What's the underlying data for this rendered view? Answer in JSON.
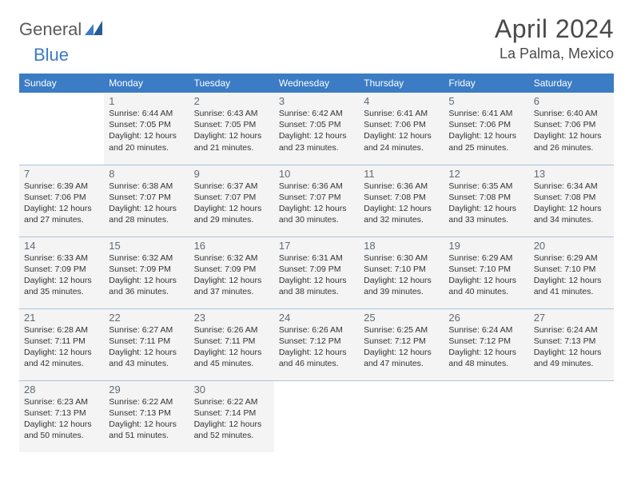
{
  "brand": {
    "part1": "General",
    "part2": "Blue",
    "logo_color": "#3b7cc4",
    "text_color": "#5a5a5a"
  },
  "title": "April 2024",
  "location": "La Palma, Mexico",
  "colors": {
    "header_bg": "#3b7cc4",
    "header_text": "#ffffff",
    "cell_bg": "#f4f4f4",
    "cell_border": "#a9c4de",
    "body_text": "#333333",
    "daynum_text": "#5e6a75"
  },
  "weekday_headers": [
    "Sunday",
    "Monday",
    "Tuesday",
    "Wednesday",
    "Thursday",
    "Friday",
    "Saturday"
  ],
  "grid": [
    [
      null,
      {
        "day": "1",
        "sunrise": "Sunrise: 6:44 AM",
        "sunset": "Sunset: 7:05 PM",
        "day1": "Daylight: 12 hours",
        "day2": "and 20 minutes."
      },
      {
        "day": "2",
        "sunrise": "Sunrise: 6:43 AM",
        "sunset": "Sunset: 7:05 PM",
        "day1": "Daylight: 12 hours",
        "day2": "and 21 minutes."
      },
      {
        "day": "3",
        "sunrise": "Sunrise: 6:42 AM",
        "sunset": "Sunset: 7:05 PM",
        "day1": "Daylight: 12 hours",
        "day2": "and 23 minutes."
      },
      {
        "day": "4",
        "sunrise": "Sunrise: 6:41 AM",
        "sunset": "Sunset: 7:06 PM",
        "day1": "Daylight: 12 hours",
        "day2": "and 24 minutes."
      },
      {
        "day": "5",
        "sunrise": "Sunrise: 6:41 AM",
        "sunset": "Sunset: 7:06 PM",
        "day1": "Daylight: 12 hours",
        "day2": "and 25 minutes."
      },
      {
        "day": "6",
        "sunrise": "Sunrise: 6:40 AM",
        "sunset": "Sunset: 7:06 PM",
        "day1": "Daylight: 12 hours",
        "day2": "and 26 minutes."
      }
    ],
    [
      {
        "day": "7",
        "sunrise": "Sunrise: 6:39 AM",
        "sunset": "Sunset: 7:06 PM",
        "day1": "Daylight: 12 hours",
        "day2": "and 27 minutes."
      },
      {
        "day": "8",
        "sunrise": "Sunrise: 6:38 AM",
        "sunset": "Sunset: 7:07 PM",
        "day1": "Daylight: 12 hours",
        "day2": "and 28 minutes."
      },
      {
        "day": "9",
        "sunrise": "Sunrise: 6:37 AM",
        "sunset": "Sunset: 7:07 PM",
        "day1": "Daylight: 12 hours",
        "day2": "and 29 minutes."
      },
      {
        "day": "10",
        "sunrise": "Sunrise: 6:36 AM",
        "sunset": "Sunset: 7:07 PM",
        "day1": "Daylight: 12 hours",
        "day2": "and 30 minutes."
      },
      {
        "day": "11",
        "sunrise": "Sunrise: 6:36 AM",
        "sunset": "Sunset: 7:08 PM",
        "day1": "Daylight: 12 hours",
        "day2": "and 32 minutes."
      },
      {
        "day": "12",
        "sunrise": "Sunrise: 6:35 AM",
        "sunset": "Sunset: 7:08 PM",
        "day1": "Daylight: 12 hours",
        "day2": "and 33 minutes."
      },
      {
        "day": "13",
        "sunrise": "Sunrise: 6:34 AM",
        "sunset": "Sunset: 7:08 PM",
        "day1": "Daylight: 12 hours",
        "day2": "and 34 minutes."
      }
    ],
    [
      {
        "day": "14",
        "sunrise": "Sunrise: 6:33 AM",
        "sunset": "Sunset: 7:09 PM",
        "day1": "Daylight: 12 hours",
        "day2": "and 35 minutes."
      },
      {
        "day": "15",
        "sunrise": "Sunrise: 6:32 AM",
        "sunset": "Sunset: 7:09 PM",
        "day1": "Daylight: 12 hours",
        "day2": "and 36 minutes."
      },
      {
        "day": "16",
        "sunrise": "Sunrise: 6:32 AM",
        "sunset": "Sunset: 7:09 PM",
        "day1": "Daylight: 12 hours",
        "day2": "and 37 minutes."
      },
      {
        "day": "17",
        "sunrise": "Sunrise: 6:31 AM",
        "sunset": "Sunset: 7:09 PM",
        "day1": "Daylight: 12 hours",
        "day2": "and 38 minutes."
      },
      {
        "day": "18",
        "sunrise": "Sunrise: 6:30 AM",
        "sunset": "Sunset: 7:10 PM",
        "day1": "Daylight: 12 hours",
        "day2": "and 39 minutes."
      },
      {
        "day": "19",
        "sunrise": "Sunrise: 6:29 AM",
        "sunset": "Sunset: 7:10 PM",
        "day1": "Daylight: 12 hours",
        "day2": "and 40 minutes."
      },
      {
        "day": "20",
        "sunrise": "Sunrise: 6:29 AM",
        "sunset": "Sunset: 7:10 PM",
        "day1": "Daylight: 12 hours",
        "day2": "and 41 minutes."
      }
    ],
    [
      {
        "day": "21",
        "sunrise": "Sunrise: 6:28 AM",
        "sunset": "Sunset: 7:11 PM",
        "day1": "Daylight: 12 hours",
        "day2": "and 42 minutes."
      },
      {
        "day": "22",
        "sunrise": "Sunrise: 6:27 AM",
        "sunset": "Sunset: 7:11 PM",
        "day1": "Daylight: 12 hours",
        "day2": "and 43 minutes."
      },
      {
        "day": "23",
        "sunrise": "Sunrise: 6:26 AM",
        "sunset": "Sunset: 7:11 PM",
        "day1": "Daylight: 12 hours",
        "day2": "and 45 minutes."
      },
      {
        "day": "24",
        "sunrise": "Sunrise: 6:26 AM",
        "sunset": "Sunset: 7:12 PM",
        "day1": "Daylight: 12 hours",
        "day2": "and 46 minutes."
      },
      {
        "day": "25",
        "sunrise": "Sunrise: 6:25 AM",
        "sunset": "Sunset: 7:12 PM",
        "day1": "Daylight: 12 hours",
        "day2": "and 47 minutes."
      },
      {
        "day": "26",
        "sunrise": "Sunrise: 6:24 AM",
        "sunset": "Sunset: 7:12 PM",
        "day1": "Daylight: 12 hours",
        "day2": "and 48 minutes."
      },
      {
        "day": "27",
        "sunrise": "Sunrise: 6:24 AM",
        "sunset": "Sunset: 7:13 PM",
        "day1": "Daylight: 12 hours",
        "day2": "and 49 minutes."
      }
    ],
    [
      {
        "day": "28",
        "sunrise": "Sunrise: 6:23 AM",
        "sunset": "Sunset: 7:13 PM",
        "day1": "Daylight: 12 hours",
        "day2": "and 50 minutes."
      },
      {
        "day": "29",
        "sunrise": "Sunrise: 6:22 AM",
        "sunset": "Sunset: 7:13 PM",
        "day1": "Daylight: 12 hours",
        "day2": "and 51 minutes."
      },
      {
        "day": "30",
        "sunrise": "Sunrise: 6:22 AM",
        "sunset": "Sunset: 7:14 PM",
        "day1": "Daylight: 12 hours",
        "day2": "and 52 minutes."
      },
      null,
      null,
      null,
      null
    ]
  ]
}
